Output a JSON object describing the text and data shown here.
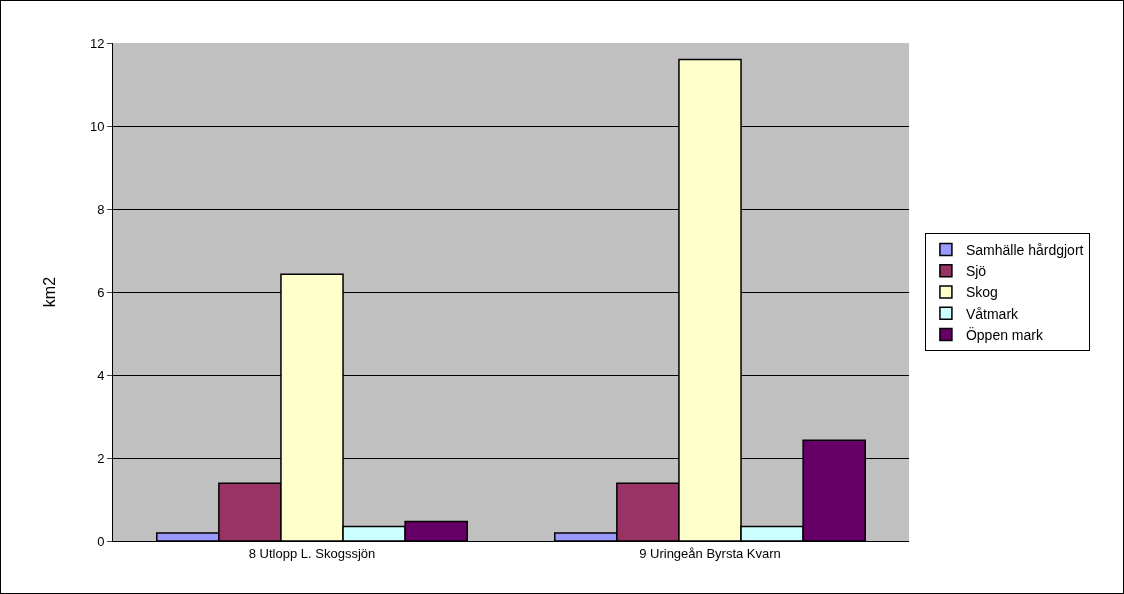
{
  "chart_data": {
    "type": "bar",
    "ylabel": "km2",
    "categories": [
      "8 Utlopp L. Skogssjön",
      "9 Uringeån Byrsta Kvarn"
    ],
    "series": [
      {
        "name": "Samhälle hårdgjort",
        "color": "#9999ff",
        "values": [
          0.19,
          0.19
        ]
      },
      {
        "name": "Sjö",
        "color": "#993366",
        "values": [
          1.39,
          1.39
        ]
      },
      {
        "name": "Skog",
        "color": "#ffffcc",
        "values": [
          6.43,
          11.6
        ]
      },
      {
        "name": "Våtmark",
        "color": "#ccffff",
        "values": [
          0.35,
          0.35
        ]
      },
      {
        "name": "Öppen mark",
        "color": "#660066",
        "values": [
          0.47,
          2.43
        ]
      }
    ],
    "ylim": [
      0,
      12
    ],
    "yticks": [
      0,
      2,
      4,
      6,
      8,
      10,
      12
    ],
    "grid": "y",
    "legend": "right"
  }
}
